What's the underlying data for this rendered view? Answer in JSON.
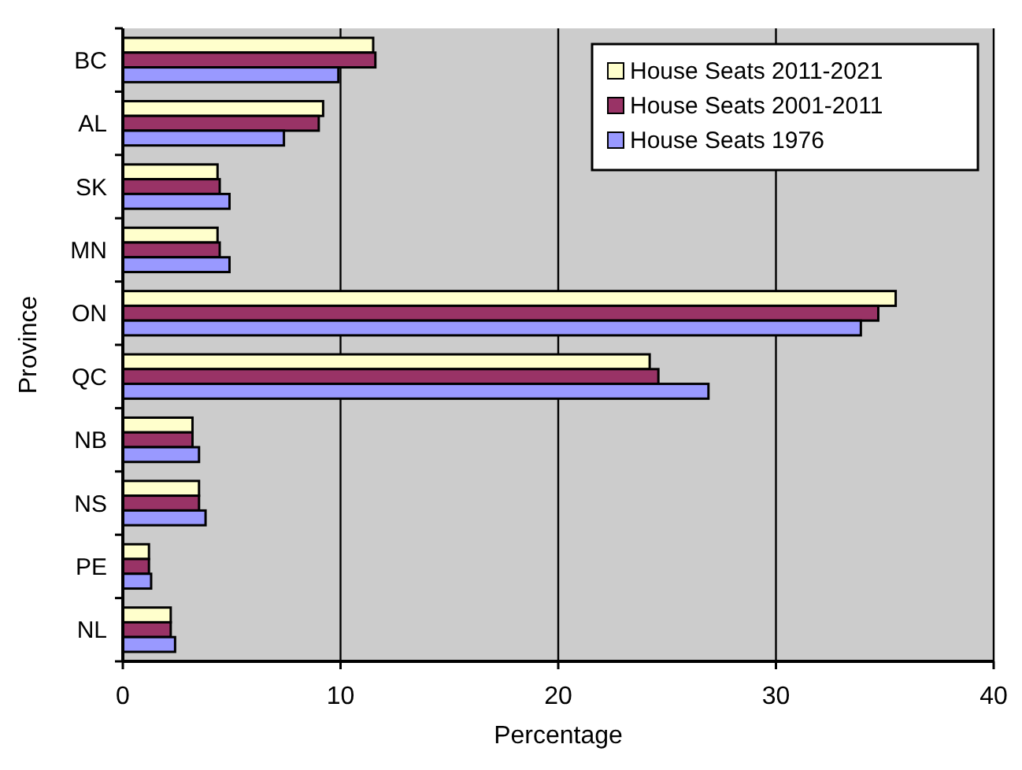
{
  "chart_data": {
    "type": "bar",
    "orientation": "horizontal",
    "xlabel": "Percentage",
    "ylabel": "Province",
    "categories": [
      "BC",
      "AL",
      "SK",
      "MN",
      "ON",
      "QC",
      "NB",
      "NS",
      "PE",
      "NL"
    ],
    "series": [
      {
        "name": "House Seats 2011-2021",
        "color": "#ffffcc",
        "values": [
          11.5,
          9.2,
          4.35,
          4.35,
          35.5,
          24.2,
          3.2,
          3.5,
          1.2,
          2.2
        ]
      },
      {
        "name": "House Seats 2001-2011",
        "color": "#993366",
        "values": [
          11.6,
          9.0,
          4.45,
          4.45,
          34.7,
          24.6,
          3.2,
          3.5,
          1.2,
          2.2
        ]
      },
      {
        "name": "House Seats 1976",
        "color": "#9999ff",
        "values": [
          9.9,
          7.4,
          4.9,
          4.9,
          33.9,
          26.9,
          3.5,
          3.8,
          1.3,
          2.4
        ]
      }
    ],
    "xlim": [
      0,
      40
    ],
    "xticks": [
      0,
      10,
      20,
      30,
      40
    ],
    "grid": "x",
    "legend": "top right"
  }
}
